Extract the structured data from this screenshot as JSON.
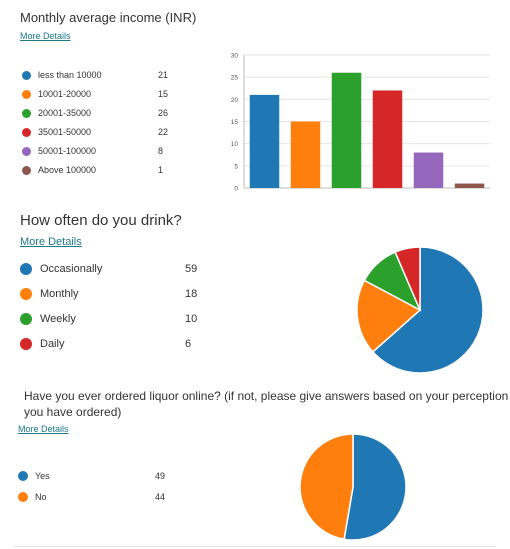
{
  "colors": {
    "blue": "#1f77b4",
    "orange": "#ff7f0e",
    "green": "#2ca02c",
    "red": "#d62728",
    "purple": "#9467bd",
    "brown": "#8c564b"
  },
  "more_details_label": "More Details",
  "q1": {
    "title": "Monthly average income (INR)",
    "items": [
      {
        "label": "less than 10000",
        "value": 21,
        "color": "#1f77b4"
      },
      {
        "label": "10001-20000",
        "value": 15,
        "color": "#ff7f0e"
      },
      {
        "label": "20001-35000",
        "value": 26,
        "color": "#2ca02c"
      },
      {
        "label": "35001-50000",
        "value": 22,
        "color": "#d62728"
      },
      {
        "label": "50001-100000",
        "value": 8,
        "color": "#9467bd"
      },
      {
        "label": "Above 100000",
        "value": 1,
        "color": "#8c564b"
      }
    ]
  },
  "q2": {
    "title": "How often do you drink?",
    "items": [
      {
        "label": "Occasionally",
        "value": 59,
        "color": "#1f77b4"
      },
      {
        "label": "Monthly",
        "value": 18,
        "color": "#ff7f0e"
      },
      {
        "label": "Weekly",
        "value": 10,
        "color": "#2ca02c"
      },
      {
        "label": "Daily",
        "value": 6,
        "color": "#d62728"
      }
    ]
  },
  "q3": {
    "title_line1": "Have you ever ordered liquor online? (if not, please give answers based on your perception if",
    "title_line2": "you have ordered)",
    "items": [
      {
        "label": "Yes",
        "value": 49,
        "color": "#1f77b4"
      },
      {
        "label": "No",
        "value": 44,
        "color": "#ff7f0e"
      }
    ]
  },
  "chart_data": [
    {
      "type": "bar",
      "title": "Monthly average income (INR)",
      "categories": [
        "less than 10000",
        "10001-20000",
        "20001-35000",
        "35001-50000",
        "50001-100000",
        "Above 100000"
      ],
      "values": [
        21,
        15,
        26,
        22,
        8,
        1
      ],
      "colors": [
        "#1f77b4",
        "#ff7f0e",
        "#2ca02c",
        "#d62728",
        "#9467bd",
        "#8c564b"
      ],
      "ylim": [
        0,
        30
      ],
      "yticks": [
        0,
        5,
        10,
        15,
        20,
        25,
        30
      ],
      "grid": true,
      "legend": "left"
    },
    {
      "type": "pie",
      "title": "How often do you drink?",
      "categories": [
        "Occasionally",
        "Monthly",
        "Weekly",
        "Daily"
      ],
      "values": [
        59,
        18,
        10,
        6
      ],
      "colors": [
        "#1f77b4",
        "#ff7f0e",
        "#2ca02c",
        "#d62728"
      ],
      "legend": "left"
    },
    {
      "type": "pie",
      "title": "Have you ever ordered liquor online? (if not, please give answers based on your perception if you have ordered)",
      "categories": [
        "Yes",
        "No"
      ],
      "values": [
        49,
        44
      ],
      "colors": [
        "#1f77b4",
        "#ff7f0e"
      ],
      "legend": "left"
    }
  ]
}
